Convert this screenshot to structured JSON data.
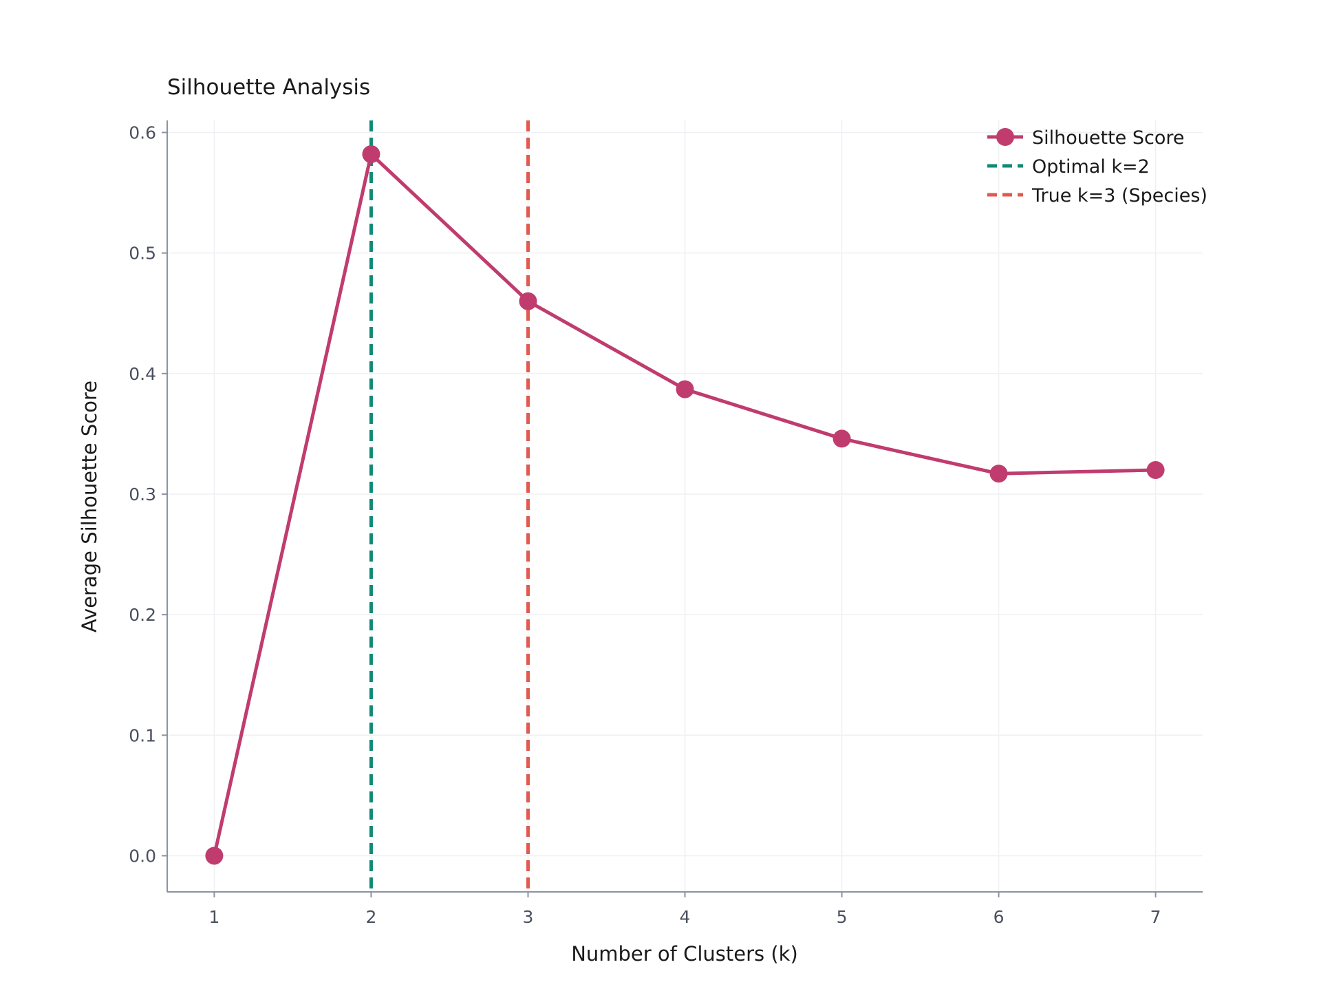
{
  "chart_data": {
    "type": "line",
    "title": "Silhouette Analysis",
    "xlabel": "Number of Clusters (k)",
    "ylabel": "Average Silhouette Score",
    "x": [
      1,
      2,
      3,
      4,
      5,
      6,
      7
    ],
    "xticks": [
      "1",
      "2",
      "3",
      "4",
      "5",
      "6",
      "7"
    ],
    "yticks": [
      "0.0",
      "0.1",
      "0.2",
      "0.3",
      "0.4",
      "0.5",
      "0.6"
    ],
    "ytick_values": [
      0.0,
      0.1,
      0.2,
      0.3,
      0.4,
      0.5,
      0.6
    ],
    "xlim": [
      0.7,
      7.3
    ],
    "ylim": [
      -0.03,
      0.61
    ],
    "grid": true,
    "legend_position": "top-right",
    "series": [
      {
        "name": "Silhouette Score",
        "values": [
          0.0,
          0.582,
          0.46,
          0.387,
          0.346,
          0.317,
          0.32
        ],
        "color": "#c03c6e",
        "marker": "circle"
      }
    ],
    "vlines": [
      {
        "name": "Optimal k=2",
        "x": 2,
        "color": "#0e8a76",
        "style": "dashed"
      },
      {
        "name": "True k=3 (Species)",
        "x": 3,
        "color": "#e05a4e",
        "style": "dashed"
      }
    ]
  }
}
